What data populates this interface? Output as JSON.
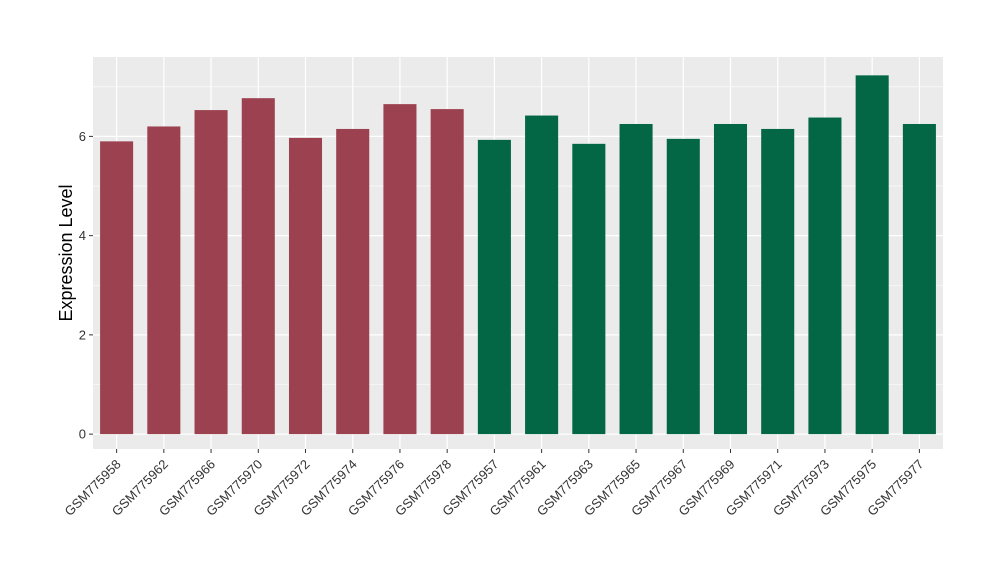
{
  "chart_data": {
    "type": "bar",
    "title": "",
    "xlabel": "",
    "ylabel": "Expression Level",
    "ylim": [
      -0.3,
      7.6
    ],
    "yticks": [
      0,
      2,
      4,
      6
    ],
    "grid": true,
    "legend": "none",
    "categories": [
      "GSM775958",
      "GSM775962",
      "GSM775966",
      "GSM775970",
      "GSM775972",
      "GSM775974",
      "GSM775976",
      "GSM775978",
      "GSM775957",
      "GSM775961",
      "GSM775963",
      "GSM775965",
      "GSM775967",
      "GSM775969",
      "GSM775971",
      "GSM775973",
      "GSM775975",
      "GSM775977"
    ],
    "values": [
      5.9,
      6.2,
      6.53,
      6.77,
      5.97,
      6.15,
      6.65,
      6.55,
      5.93,
      6.42,
      5.85,
      6.25,
      5.95,
      6.25,
      6.15,
      6.38,
      7.23,
      6.25
    ],
    "groups": [
      0,
      0,
      0,
      0,
      0,
      0,
      0,
      0,
      1,
      1,
      1,
      1,
      1,
      1,
      1,
      1,
      1,
      1
    ],
    "colors": [
      "#9b414f",
      "#036644"
    ],
    "panel_background": "#ebebeb",
    "grid_color": "#ffffff"
  }
}
